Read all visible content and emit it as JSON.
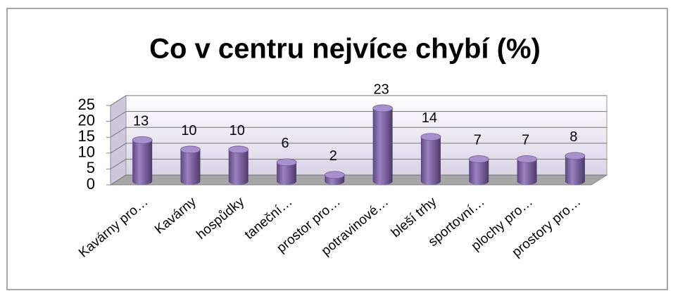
{
  "chart_data": {
    "type": "bar",
    "title": "Co v centru nejvíce chybí (%)",
    "categories": [
      "Kavárny pro…",
      "Kavárny",
      "hospůdky",
      "taneční…",
      "prostor pro…",
      "potravinové…",
      "bleší trhy",
      "sportovní…",
      "plochy pro…",
      "prostory pro…"
    ],
    "values": [
      13,
      10,
      10,
      6,
      2,
      23,
      14,
      7,
      7,
      8
    ],
    "color": "#8064a2",
    "ylim": [
      0,
      25
    ],
    "yticks": [
      0,
      5,
      10,
      15,
      20,
      25
    ],
    "grid": true
  }
}
